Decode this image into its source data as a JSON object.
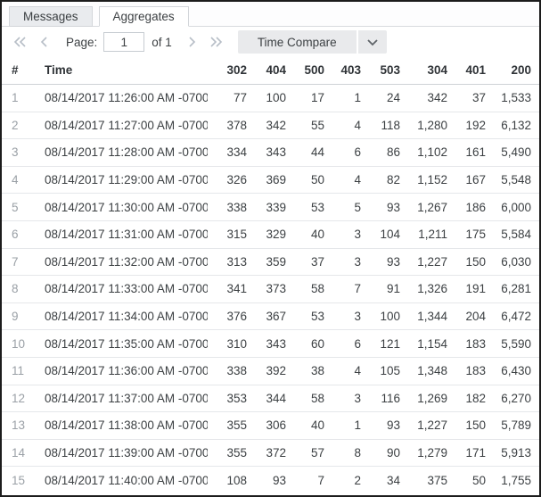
{
  "tabs": [
    {
      "label": "Messages",
      "active": false
    },
    {
      "label": "Aggregates",
      "active": true
    }
  ],
  "toolbar": {
    "page_label": "Page:",
    "page_value": "1",
    "page_of": "of 1",
    "time_compare_label": "Time Compare"
  },
  "table": {
    "columns": [
      "#",
      "Time",
      "302",
      "404",
      "500",
      "403",
      "503",
      "304",
      "401",
      "200"
    ],
    "rows": [
      [
        "1",
        "08/14/2017 11:26:00 AM -0700",
        "77",
        "100",
        "17",
        "1",
        "24",
        "342",
        "37",
        "1,533"
      ],
      [
        "2",
        "08/14/2017 11:27:00 AM -0700",
        "378",
        "342",
        "55",
        "4",
        "118",
        "1,280",
        "192",
        "6,132"
      ],
      [
        "3",
        "08/14/2017 11:28:00 AM -0700",
        "334",
        "343",
        "44",
        "6",
        "86",
        "1,102",
        "161",
        "5,490"
      ],
      [
        "4",
        "08/14/2017 11:29:00 AM -0700",
        "326",
        "369",
        "50",
        "4",
        "82",
        "1,152",
        "167",
        "5,548"
      ],
      [
        "5",
        "08/14/2017 11:30:00 AM -0700",
        "338",
        "339",
        "53",
        "5",
        "93",
        "1,267",
        "186",
        "6,000"
      ],
      [
        "6",
        "08/14/2017 11:31:00 AM -0700",
        "315",
        "329",
        "40",
        "3",
        "104",
        "1,211",
        "175",
        "5,584"
      ],
      [
        "7",
        "08/14/2017 11:32:00 AM -0700",
        "313",
        "359",
        "37",
        "3",
        "93",
        "1,227",
        "150",
        "6,030"
      ],
      [
        "8",
        "08/14/2017 11:33:00 AM -0700",
        "341",
        "373",
        "58",
        "7",
        "91",
        "1,326",
        "191",
        "6,281"
      ],
      [
        "9",
        "08/14/2017 11:34:00 AM -0700",
        "376",
        "367",
        "53",
        "3",
        "100",
        "1,344",
        "204",
        "6,472"
      ],
      [
        "10",
        "08/14/2017 11:35:00 AM -0700",
        "310",
        "343",
        "60",
        "6",
        "121",
        "1,154",
        "183",
        "5,590"
      ],
      [
        "11",
        "08/14/2017 11:36:00 AM -0700",
        "338",
        "392",
        "38",
        "4",
        "105",
        "1,348",
        "183",
        "6,430"
      ],
      [
        "12",
        "08/14/2017 11:37:00 AM -0700",
        "353",
        "344",
        "58",
        "3",
        "116",
        "1,269",
        "182",
        "6,270"
      ],
      [
        "13",
        "08/14/2017 11:38:00 AM -0700",
        "355",
        "306",
        "40",
        "1",
        "93",
        "1,227",
        "150",
        "5,789"
      ],
      [
        "14",
        "08/14/2017 11:39:00 AM -0700",
        "355",
        "372",
        "57",
        "8",
        "90",
        "1,279",
        "171",
        "5,913"
      ],
      [
        "15",
        "08/14/2017 11:40:00 AM -0700",
        "108",
        "93",
        "7",
        "2",
        "34",
        "375",
        "50",
        "1,755"
      ]
    ]
  },
  "colors": {
    "window_border": "#1c1c1c",
    "tab_inactive_bg": "#e9ebee",
    "tab_border": "#d3d6da",
    "button_bg": "#e9eaec",
    "nav_icon": "#b7bec7",
    "text_primary": "#3c4043",
    "row_index_text": "#9aa0a6",
    "row_divider": "#e5e7ea"
  }
}
